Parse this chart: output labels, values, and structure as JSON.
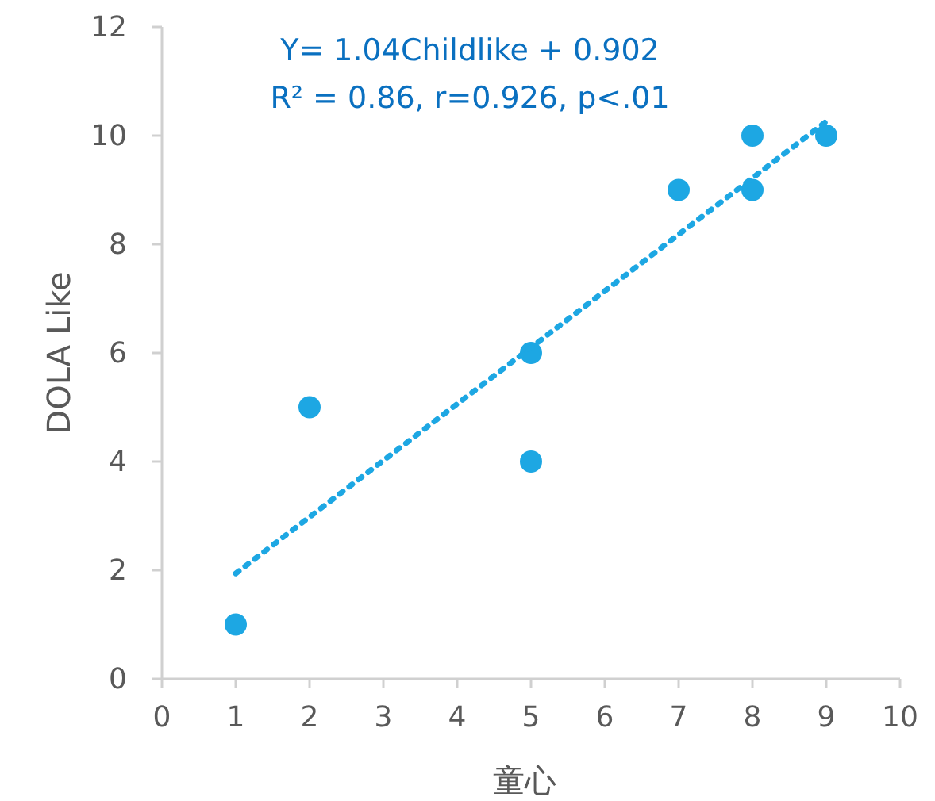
{
  "chart_data": {
    "type": "scatter",
    "xlabel": "童心",
    "ylabel": "DOLA Like",
    "annotations": [
      "Y= 1.04Childlike + 0.902",
      "R² = 0.86, r=0.926, p<.01"
    ],
    "xlim": [
      0,
      10
    ],
    "xticks": [
      0,
      1,
      2,
      3,
      4,
      5,
      6,
      7,
      8,
      9,
      10
    ],
    "ylim": [
      0,
      12
    ],
    "yticks": [
      0,
      2,
      4,
      6,
      8,
      10,
      12
    ],
    "grid": false,
    "marker": "circle",
    "series": [
      {
        "color": "#1da7e3",
        "x": [
          1,
          2,
          5,
          5,
          7,
          8,
          8,
          9
        ],
        "values": [
          1,
          5,
          6,
          4,
          9,
          10,
          9,
          10
        ]
      },
      {
        "type": "line",
        "color": "#1da7e3",
        "line_style": "dotted",
        "marker": "none",
        "x": [
          1,
          9
        ],
        "values": [
          1.94,
          10.26
        ]
      }
    ]
  }
}
